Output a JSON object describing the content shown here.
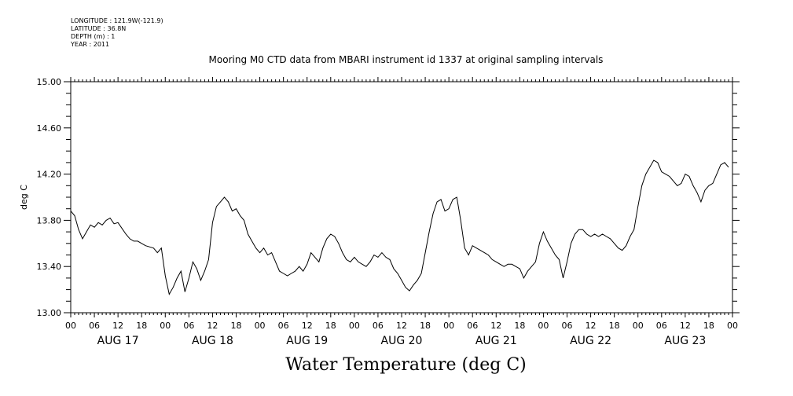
{
  "meta": {
    "longitude": "LONGITUDE : 121.9W(-121.9)",
    "latitude": "LATITUDE : 36.8N",
    "depth": "DEPTH (m) : 1",
    "year": "YEAR : 2011"
  },
  "chart_data": {
    "type": "line",
    "title": "Mooring M0 CTD data from MBARI instrument id 1337 at original sampling intervals",
    "xlabel": "Water Temperature (deg C)",
    "ylabel": "deg C",
    "ylim": [
      13.0,
      15.0
    ],
    "yticks": [
      13.0,
      13.4,
      13.8,
      14.2,
      14.6,
      15.0
    ],
    "ytick_labels": [
      "13.00",
      "13.40",
      "13.80",
      "14.20",
      "14.60",
      "15.00"
    ],
    "x_unit": "hours since AUG 17 00",
    "xlim": [
      0,
      168
    ],
    "hour_tick_labels": [
      "00",
      "06",
      "12",
      "18"
    ],
    "day_labels": [
      "AUG 17",
      "AUG 18",
      "AUG 19",
      "AUG 20",
      "AUG 21",
      "AUG 22",
      "AUG 23"
    ],
    "series": [
      {
        "values": [
          [
            0,
            13.88
          ],
          [
            1,
            13.84
          ],
          [
            2,
            13.72
          ],
          [
            3,
            13.64
          ],
          [
            4,
            13.7
          ],
          [
            5,
            13.76
          ],
          [
            6,
            13.74
          ],
          [
            7,
            13.78
          ],
          [
            8,
            13.76
          ],
          [
            9,
            13.8
          ],
          [
            10,
            13.82
          ],
          [
            11,
            13.77
          ],
          [
            12,
            13.78
          ],
          [
            13,
            13.73
          ],
          [
            14,
            13.68
          ],
          [
            15,
            13.64
          ],
          [
            16,
            13.62
          ],
          [
            17,
            13.62
          ],
          [
            18,
            13.6
          ],
          [
            19,
            13.58
          ],
          [
            20,
            13.57
          ],
          [
            21,
            13.56
          ],
          [
            22,
            13.52
          ],
          [
            23,
            13.56
          ],
          [
            24,
            13.32
          ],
          [
            25,
            13.16
          ],
          [
            26,
            13.22
          ],
          [
            27,
            13.3
          ],
          [
            28,
            13.36
          ],
          [
            29,
            13.18
          ],
          [
            30,
            13.3
          ],
          [
            31,
            13.44
          ],
          [
            32,
            13.38
          ],
          [
            33,
            13.28
          ],
          [
            34,
            13.36
          ],
          [
            35,
            13.46
          ],
          [
            36,
            13.78
          ],
          [
            37,
            13.92
          ],
          [
            38,
            13.96
          ],
          [
            39,
            14.0
          ],
          [
            40,
            13.96
          ],
          [
            41,
            13.88
          ],
          [
            42,
            13.9
          ],
          [
            43,
            13.84
          ],
          [
            44,
            13.8
          ],
          [
            45,
            13.68
          ],
          [
            46,
            13.62
          ],
          [
            47,
            13.56
          ],
          [
            48,
            13.52
          ],
          [
            49,
            13.56
          ],
          [
            50,
            13.5
          ],
          [
            51,
            13.52
          ],
          [
            52,
            13.44
          ],
          [
            53,
            13.36
          ],
          [
            54,
            13.34
          ],
          [
            55,
            13.32
          ],
          [
            56,
            13.34
          ],
          [
            57,
            13.36
          ],
          [
            58,
            13.4
          ],
          [
            59,
            13.36
          ],
          [
            60,
            13.42
          ],
          [
            61,
            13.52
          ],
          [
            62,
            13.48
          ],
          [
            63,
            13.44
          ],
          [
            64,
            13.56
          ],
          [
            65,
            13.64
          ],
          [
            66,
            13.68
          ],
          [
            67,
            13.66
          ],
          [
            68,
            13.6
          ],
          [
            69,
            13.52
          ],
          [
            70,
            13.46
          ],
          [
            71,
            13.44
          ],
          [
            72,
            13.48
          ],
          [
            73,
            13.44
          ],
          [
            74,
            13.42
          ],
          [
            75,
            13.4
          ],
          [
            76,
            13.44
          ],
          [
            77,
            13.5
          ],
          [
            78,
            13.48
          ],
          [
            79,
            13.52
          ],
          [
            80,
            13.48
          ],
          [
            81,
            13.46
          ],
          [
            82,
            13.38
          ],
          [
            83,
            13.34
          ],
          [
            84,
            13.28
          ],
          [
            85,
            13.22
          ],
          [
            86,
            13.19
          ],
          [
            87,
            13.24
          ],
          [
            88,
            13.28
          ],
          [
            89,
            13.34
          ],
          [
            90,
            13.52
          ],
          [
            91,
            13.7
          ],
          [
            92,
            13.86
          ],
          [
            93,
            13.96
          ],
          [
            94,
            13.98
          ],
          [
            95,
            13.88
          ],
          [
            96,
            13.9
          ],
          [
            97,
            13.98
          ],
          [
            98,
            14.0
          ],
          [
            99,
            13.8
          ],
          [
            100,
            13.56
          ],
          [
            101,
            13.5
          ],
          [
            102,
            13.58
          ],
          [
            103,
            13.56
          ],
          [
            104,
            13.54
          ],
          [
            105,
            13.52
          ],
          [
            106,
            13.5
          ],
          [
            107,
            13.46
          ],
          [
            108,
            13.44
          ],
          [
            109,
            13.42
          ],
          [
            110,
            13.4
          ],
          [
            111,
            13.42
          ],
          [
            112,
            13.42
          ],
          [
            113,
            13.4
          ],
          [
            114,
            13.38
          ],
          [
            115,
            13.3
          ],
          [
            116,
            13.36
          ],
          [
            117,
            13.4
          ],
          [
            118,
            13.44
          ],
          [
            119,
            13.6
          ],
          [
            120,
            13.7
          ],
          [
            121,
            13.62
          ],
          [
            122,
            13.56
          ],
          [
            123,
            13.5
          ],
          [
            124,
            13.46
          ],
          [
            125,
            13.3
          ],
          [
            126,
            13.44
          ],
          [
            127,
            13.6
          ],
          [
            128,
            13.68
          ],
          [
            129,
            13.72
          ],
          [
            130,
            13.72
          ],
          [
            131,
            13.68
          ],
          [
            132,
            13.66
          ],
          [
            133,
            13.68
          ],
          [
            134,
            13.66
          ],
          [
            135,
            13.68
          ],
          [
            136,
            13.66
          ],
          [
            137,
            13.64
          ],
          [
            138,
            13.6
          ],
          [
            139,
            13.56
          ],
          [
            140,
            13.54
          ],
          [
            141,
            13.58
          ],
          [
            142,
            13.66
          ],
          [
            143,
            13.72
          ],
          [
            144,
            13.92
          ],
          [
            145,
            14.1
          ],
          [
            146,
            14.2
          ],
          [
            147,
            14.26
          ],
          [
            148,
            14.32
          ],
          [
            149,
            14.3
          ],
          [
            150,
            14.22
          ],
          [
            151,
            14.2
          ],
          [
            152,
            14.18
          ],
          [
            153,
            14.14
          ],
          [
            154,
            14.1
          ],
          [
            155,
            14.12
          ],
          [
            156,
            14.2
          ],
          [
            157,
            14.18
          ],
          [
            158,
            14.1
          ],
          [
            159,
            14.04
          ],
          [
            160,
            13.96
          ],
          [
            161,
            14.06
          ],
          [
            162,
            14.1
          ],
          [
            163,
            14.12
          ],
          [
            164,
            14.2
          ],
          [
            165,
            14.28
          ],
          [
            166,
            14.3
          ],
          [
            167,
            14.26
          ]
        ]
      }
    ]
  }
}
